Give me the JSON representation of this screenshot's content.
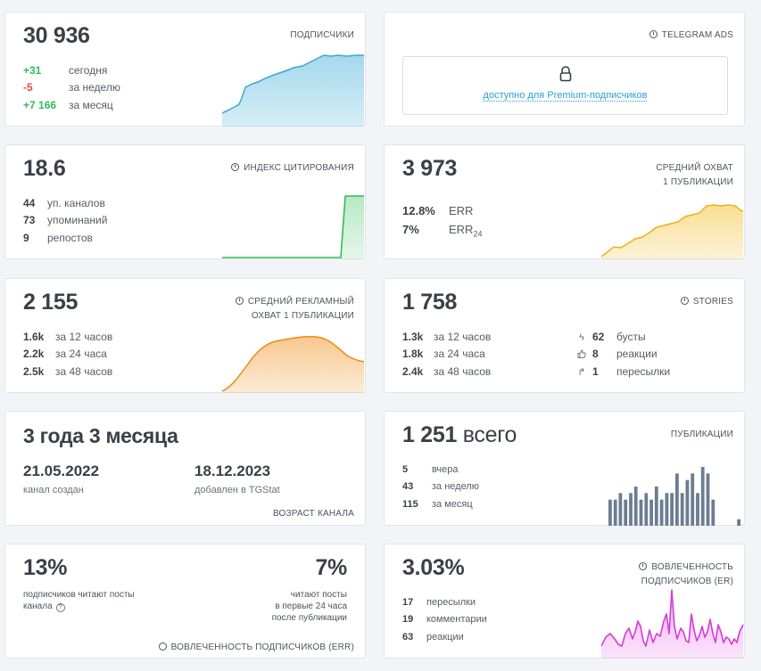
{
  "subscribers": {
    "total": "30 936",
    "title": "ПОДПИСЧИКИ",
    "rows": [
      {
        "value": "+31",
        "label": "сегодня"
      },
      {
        "value": "-5",
        "label": "за неделю"
      },
      {
        "value": "+7 166",
        "label": "за месяц"
      }
    ],
    "color": "#5bb8dd"
  },
  "telegram_ads": {
    "title": "TELEGRAM ADS",
    "premium_text": "доступно для Premium-подписчиков"
  },
  "citation": {
    "value": "18.6",
    "title": "ИНДЕКС ЦИТИРОВАНИЯ",
    "rows": [
      {
        "value": "44",
        "label": "уп. каналов"
      },
      {
        "value": "73",
        "label": "упоминаний"
      },
      {
        "value": "9",
        "label": "репостов"
      }
    ],
    "color": "#2ebd59"
  },
  "avg_reach": {
    "value": "3 973",
    "title_line1": "СРЕДНИЙ ОХВАТ",
    "title_line2": "1 ПУБЛИКАЦИИ",
    "rows": [
      {
        "value": "12.8%",
        "label": "ERR"
      },
      {
        "value": "7%",
        "label": "ERR",
        "sub": "24"
      }
    ],
    "color": "#f5c23a"
  },
  "ad_reach": {
    "value": "2 155",
    "title_line1": "СРЕДНИЙ РЕКЛАМНЫЙ",
    "title_line2": "ОХВАТ 1 ПУБЛИКАЦИИ",
    "rows": [
      {
        "value": "1.6k",
        "label": "за 12 часов"
      },
      {
        "value": "2.2k",
        "label": "за 24 часа"
      },
      {
        "value": "2.5k",
        "label": "за 48 часов"
      }
    ],
    "color": "#f0901e"
  },
  "stories": {
    "value": "1 758",
    "title": "STORIES",
    "rows": [
      {
        "value": "1.3k",
        "label": "за 12 часов"
      },
      {
        "value": "1.8k",
        "label": "за 24 часа"
      },
      {
        "value": "2.4k",
        "label": "за 48 часов"
      }
    ],
    "right_rows": [
      {
        "icon": "boost-icon",
        "value": "62",
        "label": "бусты"
      },
      {
        "icon": "thumbs-up-icon",
        "value": "8",
        "label": "реакции"
      },
      {
        "icon": "forward-icon",
        "value": "1",
        "label": "пересылки"
      }
    ]
  },
  "age": {
    "value": "3 года 3 месяца",
    "created_date": "21.05.2022",
    "created_label": "канал создан",
    "added_date": "18.12.2023",
    "added_label": "добавлен в TGStat",
    "footer": "ВОЗРАСТ КАНАЛА"
  },
  "publications": {
    "value": "1 251",
    "suffix": "всего",
    "title": "ПУБЛИКАЦИИ",
    "rows": [
      {
        "value": "5",
        "label": "вчера"
      },
      {
        "value": "43",
        "label": "за неделю"
      },
      {
        "value": "115",
        "label": "за месяц"
      }
    ],
    "color": "#6b7d91",
    "bars": [
      3,
      2,
      0,
      3,
      2,
      8,
      8,
      0,
      3,
      3,
      2,
      3,
      3,
      2,
      3,
      1,
      3,
      5,
      0,
      5,
      3,
      0,
      0,
      6,
      5,
      6,
      5,
      6,
      5,
      5,
      0,
      8,
      8,
      6,
      0,
      6,
      0,
      2,
      5,
      8,
      8,
      0,
      5,
      0,
      0,
      0,
      6,
      6,
      7,
      6,
      4,
      6,
      4,
      4,
      6,
      6,
      5,
      7,
      6,
      4,
      6,
      5,
      6,
      5,
      4,
      4,
      5,
      4,
      5,
      6,
      4,
      5,
      4,
      6,
      4,
      5,
      5,
      8,
      5,
      7,
      8,
      5,
      9,
      8,
      4,
      0,
      0,
      0,
      0,
      1
    ]
  },
  "reader_engagement": {
    "pct_subs": "13%",
    "pct_subs_label_line1": "подписчиков читают посты",
    "pct_subs_label_line2": "канала",
    "pct_24": "7%",
    "pct_24_line1": "читают посты",
    "pct_24_line2": "в первые 24 часа",
    "pct_24_line3": "после публикации",
    "footer": "ВОВЛЕЧЕННОСТЬ ПОДПИСЧИКОВ (ERR)"
  },
  "er": {
    "value": "3.03%",
    "title_line1": "ВОВЛЕЧЕННОСТЬ",
    "title_line2": "ПОДПИСЧИКОВ (ER)",
    "rows": [
      {
        "value": "17",
        "label": "пересылки"
      },
      {
        "value": "19",
        "label": "комментарии"
      },
      {
        "value": "63",
        "label": "реакции"
      }
    ],
    "color": "#e34fe0"
  }
}
